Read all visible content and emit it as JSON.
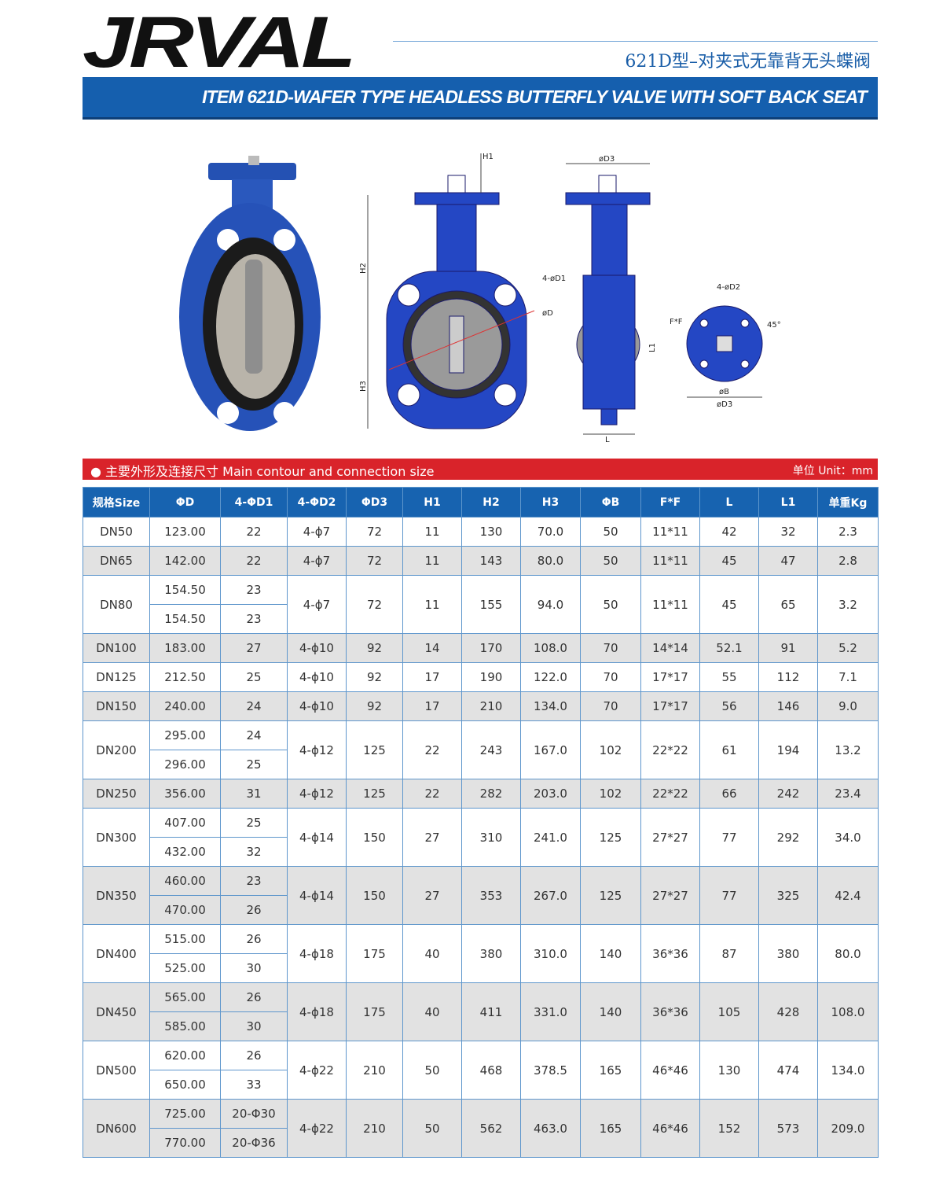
{
  "header": {
    "logo": "JRVAL",
    "subtitle_cn": "621D型–对夹式无靠背无头蝶阀",
    "title": "ITEM 621D-WAFER TYPE HEADLESS BUTTERFLY VALVE WITH SOFT BACK SEAT"
  },
  "drawing_labels": [
    "H1",
    "H2",
    "H3",
    "4-øD1",
    "øD",
    "øD3",
    "L1",
    "L",
    "4-øD2",
    "F*F",
    "45°",
    "øB",
    "øD3"
  ],
  "section": {
    "title": "主要外形及连接尺寸 Main contour and connection size",
    "unit": "单位 Unit：mm"
  },
  "table": {
    "headers": [
      "规格Size",
      "ΦD",
      "4-ΦD1",
      "4-ΦD2",
      "ΦD3",
      "H1",
      "H2",
      "H3",
      "ΦB",
      "F*F",
      "L",
      "L1",
      "单重Kg"
    ],
    "rows": [
      [
        "DN50",
        [
          "123.00"
        ],
        [
          "22"
        ],
        "4-ɸ7",
        "72",
        "11",
        "130",
        "70.0",
        "50",
        "11*11",
        "42",
        "32",
        "2.3"
      ],
      [
        "DN65",
        [
          "142.00"
        ],
        [
          "22"
        ],
        "4-ɸ7",
        "72",
        "11",
        "143",
        "80.0",
        "50",
        "11*11",
        "45",
        "47",
        "2.8"
      ],
      [
        "DN80",
        [
          "154.50",
          "154.50"
        ],
        [
          "23",
          "23"
        ],
        "4-ɸ7",
        "72",
        "11",
        "155",
        "94.0",
        "50",
        "11*11",
        "45",
        "65",
        "3.2"
      ],
      [
        "DN100",
        [
          "183.00"
        ],
        [
          "27"
        ],
        "4-ɸ10",
        "92",
        "14",
        "170",
        "108.0",
        "70",
        "14*14",
        "52.1",
        "91",
        "5.2"
      ],
      [
        "DN125",
        [
          "212.50"
        ],
        [
          "25"
        ],
        "4-ɸ10",
        "92",
        "17",
        "190",
        "122.0",
        "70",
        "17*17",
        "55",
        "112",
        "7.1"
      ],
      [
        "DN150",
        [
          "240.00"
        ],
        [
          "24"
        ],
        "4-ɸ10",
        "92",
        "17",
        "210",
        "134.0",
        "70",
        "17*17",
        "56",
        "146",
        "9.0"
      ],
      [
        "DN200",
        [
          "295.00",
          "296.00"
        ],
        [
          "24",
          "25"
        ],
        "4-ɸ12",
        "125",
        "22",
        "243",
        "167.0",
        "102",
        "22*22",
        "61",
        "194",
        "13.2"
      ],
      [
        "DN250",
        [
          "356.00"
        ],
        [
          "31"
        ],
        "4-ɸ12",
        "125",
        "22",
        "282",
        "203.0",
        "102",
        "22*22",
        "66",
        "242",
        "23.4"
      ],
      [
        "DN300",
        [
          "407.00",
          "432.00"
        ],
        [
          "25",
          "32"
        ],
        "4-ɸ14",
        "150",
        "27",
        "310",
        "241.0",
        "125",
        "27*27",
        "77",
        "292",
        "34.0"
      ],
      [
        "DN350",
        [
          "460.00",
          "470.00"
        ],
        [
          "23",
          "26"
        ],
        "4-ɸ14",
        "150",
        "27",
        "353",
        "267.0",
        "125",
        "27*27",
        "77",
        "325",
        "42.4"
      ],
      [
        "DN400",
        [
          "515.00",
          "525.00"
        ],
        [
          "26",
          "30"
        ],
        "4-ɸ18",
        "175",
        "40",
        "380",
        "310.0",
        "140",
        "36*36",
        "87",
        "380",
        "80.0"
      ],
      [
        "DN450",
        [
          "565.00",
          "585.00"
        ],
        [
          "26",
          "30"
        ],
        "4-ɸ18",
        "175",
        "40",
        "411",
        "331.0",
        "140",
        "36*36",
        "105",
        "428",
        "108.0"
      ],
      [
        "DN500",
        [
          "620.00",
          "650.00"
        ],
        [
          "26",
          "33"
        ],
        "4-ɸ22",
        "210",
        "50",
        "468",
        "378.5",
        "165",
        "46*46",
        "130",
        "474",
        "134.0"
      ],
      [
        "DN600",
        [
          "725.00",
          "770.00"
        ],
        [
          "20-Φ30",
          "20-Φ36"
        ],
        "4-ɸ22",
        "210",
        "50",
        "562",
        "463.0",
        "165",
        "46*46",
        "152",
        "573",
        "209.0"
      ]
    ]
  }
}
